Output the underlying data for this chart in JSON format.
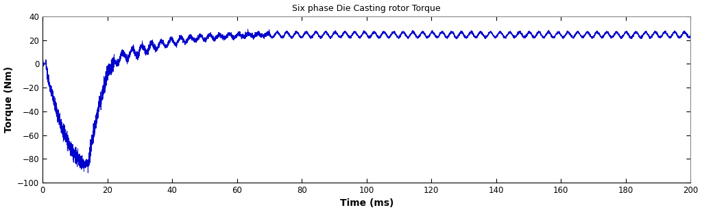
{
  "title": "Six phase Die Casting rotor Torque",
  "xlabel": "Time (ms)",
  "ylabel": "Torque (Nm)",
  "xlim": [
    0,
    200
  ],
  "ylim": [
    -100,
    40
  ],
  "yticks": [
    -100,
    -80,
    -60,
    -40,
    -20,
    0,
    20,
    40
  ],
  "xticks": [
    0,
    20,
    40,
    60,
    80,
    100,
    120,
    140,
    160,
    180,
    200
  ],
  "line_color": "#0000cc",
  "line_width": 0.7,
  "bg_color": "#ffffff"
}
